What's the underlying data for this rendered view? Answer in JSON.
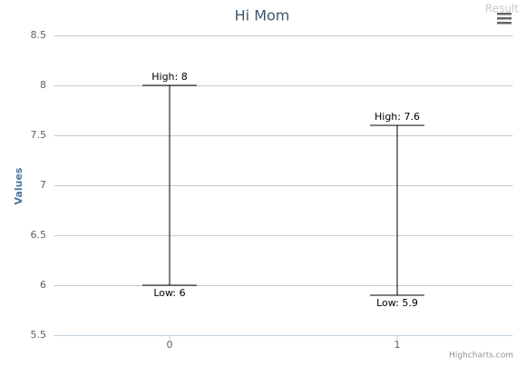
{
  "corner_label": "Result",
  "chart_data": {
    "type": "errorbar",
    "title": "Hi Mom",
    "y_label": "Values",
    "categories": [
      "0",
      "1"
    ],
    "low": [
      6,
      5.9
    ],
    "high": [
      8,
      7.6
    ],
    "low_labels": [
      "Low: 6",
      "Low: 5.9"
    ],
    "high_labels": [
      "High: 8",
      "High: 7.6"
    ],
    "color": "#000000",
    "ylim": [
      5.5,
      8.5
    ],
    "yticks": [
      5.5,
      6,
      6.5,
      7,
      7.5,
      8,
      8.5
    ],
    "grid": true,
    "credits": "Highcharts.com"
  }
}
